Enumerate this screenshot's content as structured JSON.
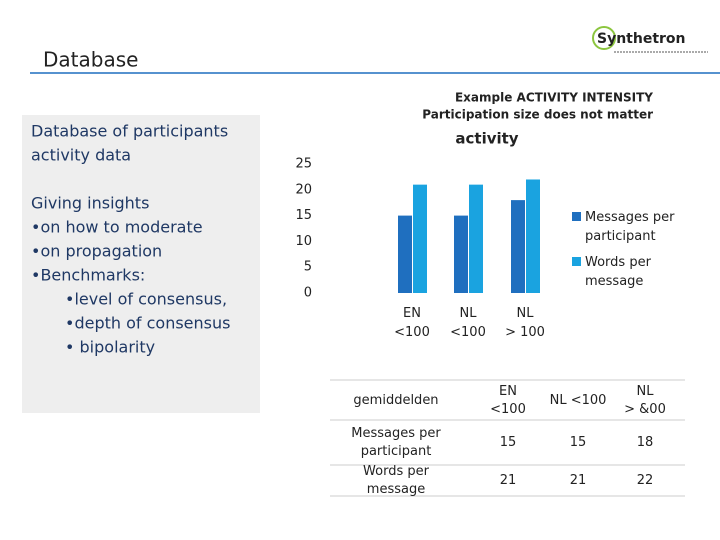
{
  "header": {
    "title": "Database",
    "logo": "Synthetron"
  },
  "sidebar": {
    "intro": [
      "Database of participants",
      "activity data"
    ],
    "insights": [
      "Giving insights",
      "•on how to moderate",
      "•on propagation",
      "•Benchmarks:",
      "•level of consensus,",
      "•depth of consensus",
      "• bipolarity"
    ]
  },
  "chart_data": {
    "type": "bar",
    "subtitle": [
      "Example ACTIVITY INTENSITY",
      "Participation size does not matter"
    ],
    "title": "activity",
    "categories": [
      "EN <100",
      "NL <100",
      "NL > 100"
    ],
    "series": [
      {
        "name": "Messages per participant",
        "color": "#1f6fbf",
        "values": [
          15,
          15,
          18
        ]
      },
      {
        "name": "Words per message",
        "color": "#1aa3e0",
        "values": [
          21,
          21,
          22
        ]
      }
    ],
    "ylim": [
      0,
      25
    ],
    "yticks": [
      0,
      5,
      10,
      15,
      20,
      25
    ],
    "grid": false,
    "legend": "right"
  },
  "table": {
    "header": [
      "gemiddelden",
      "EN <100",
      "NL <100",
      "NL > &00"
    ],
    "rows": [
      [
        "Messages per participant",
        "15",
        "15",
        "18"
      ],
      [
        "Words per message",
        "21",
        "21",
        "22"
      ]
    ]
  }
}
